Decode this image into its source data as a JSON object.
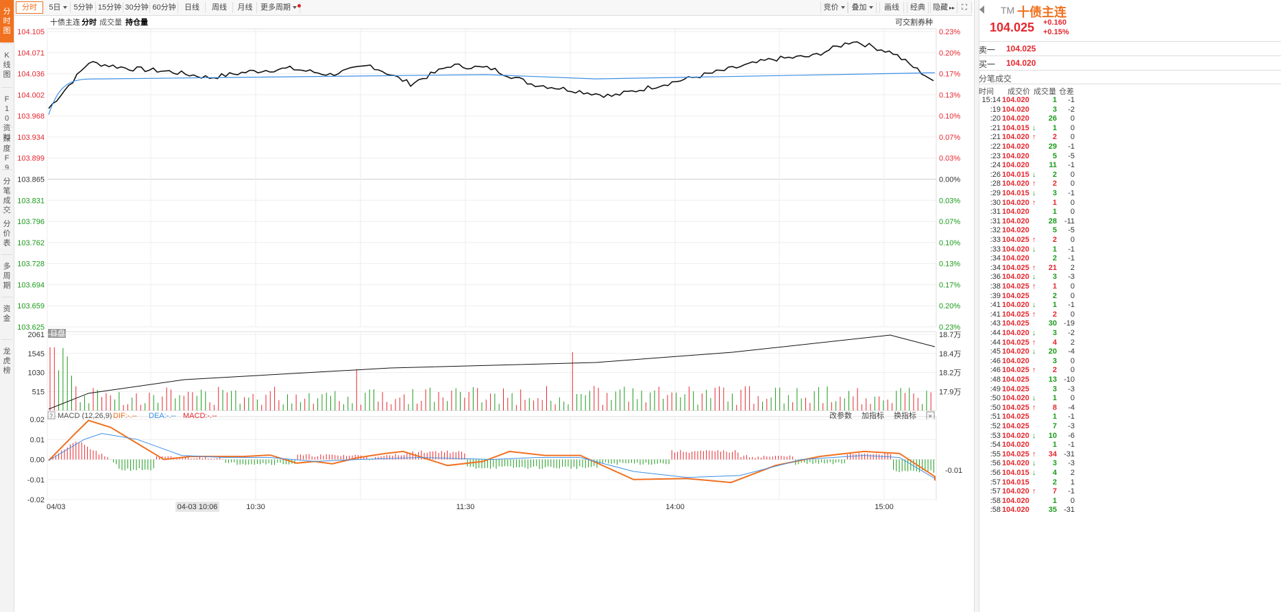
{
  "rail": [
    {
      "label": "分时图",
      "active": true
    },
    {
      "label": "K线图"
    },
    {
      "label": "F10资料"
    },
    {
      "label": "深度F9"
    },
    {
      "label": "分笔成交"
    },
    {
      "label": "分价表"
    },
    {
      "label": "多周期"
    },
    {
      "label": "资金"
    },
    {
      "label": "龙虎榜"
    }
  ],
  "toolbar": {
    "periods": [
      "分时",
      "5日",
      "5分钟",
      "15分钟",
      "30分钟",
      "60分钟",
      "日线",
      "周线",
      "月线",
      "更多周期"
    ],
    "right": [
      "竞价",
      "叠加",
      "画线",
      "经典",
      "隐藏"
    ]
  },
  "legend": {
    "name": "十债主连",
    "mode": "分时",
    "vol": "成交量",
    "oi": "持仓量",
    "right_note": "可交割券种"
  },
  "price_axis": {
    "left": [
      "104.105",
      "104.071",
      "104.036",
      "104.002",
      "103.968",
      "103.934",
      "103.899",
      "103.865",
      "103.831",
      "103.796",
      "103.762",
      "103.728",
      "103.694",
      "103.659",
      "103.625"
    ],
    "right": [
      "0.23%",
      "0.20%",
      "0.17%",
      "0.13%",
      "0.10%",
      "0.07%",
      "0.03%",
      "0.00%",
      "0.03%",
      "0.07%",
      "0.10%",
      "0.13%",
      "0.17%",
      "0.20%",
      "0.23%"
    ]
  },
  "volume_axis": {
    "tag": "日盘",
    "left": [
      "2061",
      "1545",
      "1030",
      "515"
    ],
    "right": [
      "18.7万",
      "18.4万",
      "18.2万",
      "17.9万"
    ]
  },
  "macd": {
    "title": "MACD (12,26,9)",
    "dif": "DIF:-.--",
    "dea": "DEA:-.--",
    "macd": "MACD:-.--",
    "left": [
      "0.02",
      "0.01",
      "0.00",
      "-0.01",
      "-0.02"
    ],
    "right_value": "-0.01",
    "buttons": [
      "改参数",
      "加指标",
      "换指标"
    ]
  },
  "time_axis": {
    "labels": [
      "04/03",
      "10:30",
      "11:30",
      "14:00",
      "15:00"
    ],
    "cursor": "04-03 10:06"
  },
  "colors": {
    "up": "#e5262d",
    "down": "#1a9a1a",
    "accent": "#f0711f",
    "avg_line": "#3a8ee6",
    "dif": "#f07020",
    "dea": "#3a8ee6"
  },
  "chart_data": {
    "type": "line",
    "price_series": [
      {
        "x": "09:30",
        "y": 103.98
      },
      {
        "x": "09:40",
        "y": 104.055
      },
      {
        "x": "09:50",
        "y": 104.045
      },
      {
        "x": "10:00",
        "y": 104.04
      },
      {
        "x": "10:10",
        "y": 104.03
      },
      {
        "x": "10:20",
        "y": 104.04
      },
      {
        "x": "10:30",
        "y": 104.045
      },
      {
        "x": "10:40",
        "y": 104.035
      },
      {
        "x": "10:50",
        "y": 104.05
      },
      {
        "x": "11:00",
        "y": 104.02
      },
      {
        "x": "11:10",
        "y": 104.05
      },
      {
        "x": "11:20",
        "y": 104.045
      },
      {
        "x": "11:30",
        "y": 104.02
      },
      {
        "x": "13:00",
        "y": 104.01
      },
      {
        "x": "13:15",
        "y": 104.0
      },
      {
        "x": "13:30",
        "y": 104.015
      },
      {
        "x": "13:45",
        "y": 104.03
      },
      {
        "x": "14:00",
        "y": 104.045
      },
      {
        "x": "14:15",
        "y": 104.06
      },
      {
        "x": "14:30",
        "y": 104.065
      },
      {
        "x": "14:45",
        "y": 104.09
      },
      {
        "x": "15:00",
        "y": 104.07
      },
      {
        "x": "15:15",
        "y": 104.025
      }
    ]
  },
  "quote": {
    "tag": "TM",
    "name": "十债主连",
    "price": "104.025",
    "chg": "+0.160",
    "pct": "+0.15%",
    "sell_label": "卖一",
    "sell": "104.025",
    "buy_label": "买一",
    "buy": "104.020"
  },
  "ticks": {
    "title": "分笔成交",
    "headers": [
      "时间",
      "成交价",
      "成交量",
      "仓差"
    ],
    "rows": [
      [
        "15:14",
        "104.020",
        "",
        "1",
        "-1"
      ],
      [
        ":19",
        "104.020",
        "",
        "3",
        "-2"
      ],
      [
        ":20",
        "104.020",
        "",
        "26",
        "0"
      ],
      [
        ":21",
        "104.015",
        "down",
        "1",
        "0"
      ],
      [
        ":21",
        "104.020",
        "up",
        "2",
        "0"
      ],
      [
        ":22",
        "104.020",
        "",
        "29",
        "-1"
      ],
      [
        ":23",
        "104.020",
        "",
        "5",
        "-5"
      ],
      [
        ":24",
        "104.020",
        "",
        "11",
        "-1"
      ],
      [
        ":26",
        "104.015",
        "down",
        "2",
        "0"
      ],
      [
        ":28",
        "104.020",
        "up",
        "2",
        "0"
      ],
      [
        ":29",
        "104.015",
        "down",
        "3",
        "-1"
      ],
      [
        ":30",
        "104.020",
        "up",
        "1",
        "0"
      ],
      [
        ":31",
        "104.020",
        "",
        "1",
        "0"
      ],
      [
        ":31",
        "104.020",
        "",
        "28",
        "-11"
      ],
      [
        ":32",
        "104.020",
        "",
        "5",
        "-5"
      ],
      [
        ":33",
        "104.025",
        "up",
        "2",
        "0"
      ],
      [
        ":33",
        "104.020",
        "down",
        "1",
        "-1"
      ],
      [
        ":34",
        "104.020",
        "",
        "2",
        "-1"
      ],
      [
        ":34",
        "104.025",
        "up",
        "21",
        "2"
      ],
      [
        ":36",
        "104.020",
        "down",
        "3",
        "-3"
      ],
      [
        ":38",
        "104.025",
        "up",
        "1",
        "0"
      ],
      [
        ":39",
        "104.025",
        "",
        "2",
        "0"
      ],
      [
        ":41",
        "104.020",
        "down",
        "1",
        "-1"
      ],
      [
        ":41",
        "104.025",
        "up",
        "2",
        "0"
      ],
      [
        ":43",
        "104.025",
        "",
        "30",
        "-19"
      ],
      [
        ":44",
        "104.020",
        "down",
        "3",
        "-2"
      ],
      [
        ":44",
        "104.025",
        "up",
        "4",
        "2"
      ],
      [
        ":45",
        "104.020",
        "down",
        "20",
        "-4"
      ],
      [
        ":46",
        "104.020",
        "",
        "3",
        "0"
      ],
      [
        ":46",
        "104.025",
        "up",
        "2",
        "0"
      ],
      [
        ":48",
        "104.025",
        "",
        "13",
        "-10"
      ],
      [
        ":49",
        "104.025",
        "",
        "3",
        "-3"
      ],
      [
        ":50",
        "104.020",
        "down",
        "1",
        "0"
      ],
      [
        ":50",
        "104.025",
        "up",
        "8",
        "-4"
      ],
      [
        ":51",
        "104.025",
        "",
        "1",
        "-1"
      ],
      [
        ":52",
        "104.025",
        "",
        "7",
        "-3"
      ],
      [
        ":53",
        "104.020",
        "down",
        "10",
        "-6"
      ],
      [
        ":54",
        "104.020",
        "",
        "1",
        "-1"
      ],
      [
        ":55",
        "104.025",
        "up",
        "34",
        "-31"
      ],
      [
        ":56",
        "104.020",
        "down",
        "3",
        "-3"
      ],
      [
        ":56",
        "104.015",
        "down",
        "4",
        "2"
      ],
      [
        ":57",
        "104.015",
        "",
        "2",
        "1"
      ],
      [
        ":57",
        "104.020",
        "up",
        "7",
        "-1"
      ],
      [
        ":58",
        "104.020",
        "",
        "1",
        "0"
      ],
      [
        ":58",
        "104.020",
        "",
        "35",
        "-31"
      ]
    ]
  }
}
